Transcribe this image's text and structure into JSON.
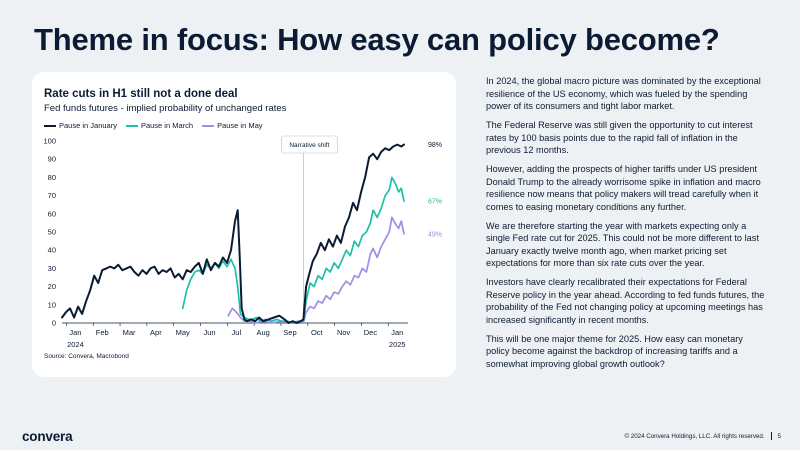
{
  "page": {
    "title": "Theme in focus: How easy can policy become?",
    "paragraphs": [
      "In 2024, the global macro picture was dominated by the exceptional resilience of the US economy, which was fueled by the spending power of its consumers and tight labor market.",
      "The Federal Reserve was still given the opportunity to cut interest rates by 100 basis points due to the rapid fall of inflation in the previous 12 months.",
      "However, adding the prospects of higher tariffs under US president Donald Trump to the already worrisome spike in inflation and macro resilience now means that policy makers will tread carefully when it comes to easing monetary conditions any further.",
      "We are therefore starting the year with markets expecting only a single Fed rate cut for 2025. This could not be more different to last January exactly twelve month ago, when market pricing set expectations for more than six rate cuts over the year.",
      "Investors have clearly recalibrated their expectations for Federal Reserve policy in the year ahead. According to fed funds futures, the probability of the Fed not changing policy at upcoming meetings has increased significantly in recent months.",
      "This will be one major theme for 2025. How easy can monetary policy become against the backdrop of increasing tariffs and a somewhat improving global growth outlook?"
    ],
    "footer": {
      "logo_main": "convera",
      "copyright": "© 2024 Convera Holdings, LLC. All rights reserved.",
      "page_number": "5"
    }
  },
  "chart_data": {
    "type": "line",
    "title": "Rate cuts in H1 still not a done deal",
    "subtitle": "Fed funds futures - implied probability of unchanged rates",
    "source": "Source: Convera, Macrobond",
    "ylim": [
      0,
      100
    ],
    "yticks": [
      0,
      10,
      20,
      30,
      40,
      50,
      60,
      70,
      80,
      90,
      100
    ],
    "xlim": [
      0,
      12.9
    ],
    "xticks": [
      {
        "t": 0.5,
        "label": "Jan",
        "year": "2024"
      },
      {
        "t": 1.5,
        "label": "Feb"
      },
      {
        "t": 2.5,
        "label": "Mar"
      },
      {
        "t": 3.5,
        "label": "Apr"
      },
      {
        "t": 4.5,
        "label": "May"
      },
      {
        "t": 5.5,
        "label": "Jun"
      },
      {
        "t": 6.5,
        "label": "Jul"
      },
      {
        "t": 7.5,
        "label": "Aug"
      },
      {
        "t": 8.5,
        "label": "Sep"
      },
      {
        "t": 9.5,
        "label": "Oct"
      },
      {
        "t": 10.5,
        "label": "Nov"
      },
      {
        "t": 11.5,
        "label": "Dec"
      },
      {
        "t": 12.5,
        "label": "Jan",
        "year": "2025"
      }
    ],
    "annotation": {
      "label": "Narrative shift",
      "t": 9.0
    },
    "grid": false,
    "legend_position": "top-left",
    "series": [
      {
        "name": "Pause in January",
        "color": "#0b1b33",
        "end_label": "98%",
        "points": [
          [
            0,
            3
          ],
          [
            0.15,
            6
          ],
          [
            0.3,
            8
          ],
          [
            0.45,
            3
          ],
          [
            0.6,
            9
          ],
          [
            0.75,
            5
          ],
          [
            0.9,
            12
          ],
          [
            1.05,
            18
          ],
          [
            1.2,
            26
          ],
          [
            1.35,
            22
          ],
          [
            1.5,
            29
          ],
          [
            1.65,
            30
          ],
          [
            1.8,
            31
          ],
          [
            1.95,
            30
          ],
          [
            2.1,
            32
          ],
          [
            2.25,
            29
          ],
          [
            2.4,
            30
          ],
          [
            2.55,
            31
          ],
          [
            2.7,
            28
          ],
          [
            2.85,
            26
          ],
          [
            3.0,
            29
          ],
          [
            3.15,
            27
          ],
          [
            3.3,
            30
          ],
          [
            3.45,
            31
          ],
          [
            3.6,
            27
          ],
          [
            3.75,
            29
          ],
          [
            3.9,
            28
          ],
          [
            4.05,
            30
          ],
          [
            4.2,
            25
          ],
          [
            4.35,
            27
          ],
          [
            4.5,
            24
          ],
          [
            4.65,
            29
          ],
          [
            4.8,
            28
          ],
          [
            4.95,
            31
          ],
          [
            5.1,
            33
          ],
          [
            5.25,
            27
          ],
          [
            5.4,
            35
          ],
          [
            5.55,
            29
          ],
          [
            5.7,
            33
          ],
          [
            5.85,
            31
          ],
          [
            6.0,
            36
          ],
          [
            6.15,
            33
          ],
          [
            6.3,
            40
          ],
          [
            6.45,
            56
          ],
          [
            6.55,
            62
          ],
          [
            6.62,
            38
          ],
          [
            6.7,
            8
          ],
          [
            6.8,
            2
          ],
          [
            6.9,
            1
          ],
          [
            7.05,
            2
          ],
          [
            7.2,
            1
          ],
          [
            7.35,
            3
          ],
          [
            7.5,
            1
          ],
          [
            7.7,
            2
          ],
          [
            7.9,
            3
          ],
          [
            8.1,
            4
          ],
          [
            8.3,
            2
          ],
          [
            8.45,
            0
          ],
          [
            8.6,
            1
          ],
          [
            8.75,
            0
          ],
          [
            8.9,
            1
          ],
          [
            9.0,
            2
          ],
          [
            9.1,
            20
          ],
          [
            9.2,
            26
          ],
          [
            9.35,
            34
          ],
          [
            9.5,
            38
          ],
          [
            9.65,
            44
          ],
          [
            9.8,
            40
          ],
          [
            9.95,
            46
          ],
          [
            10.1,
            42
          ],
          [
            10.25,
            48
          ],
          [
            10.4,
            44
          ],
          [
            10.55,
            53
          ],
          [
            10.7,
            58
          ],
          [
            10.85,
            66
          ],
          [
            11.0,
            62
          ],
          [
            11.15,
            72
          ],
          [
            11.3,
            80
          ],
          [
            11.45,
            91
          ],
          [
            11.6,
            93
          ],
          [
            11.75,
            90
          ],
          [
            11.9,
            94
          ],
          [
            12.05,
            96
          ],
          [
            12.2,
            95
          ],
          [
            12.35,
            97
          ],
          [
            12.5,
            98
          ],
          [
            12.65,
            97
          ],
          [
            12.75,
            98
          ]
        ]
      },
      {
        "name": "Pause in March",
        "color": "#1fbfa9",
        "end_label": "67%",
        "points": [
          [
            4.5,
            8
          ],
          [
            4.65,
            18
          ],
          [
            4.8,
            24
          ],
          [
            4.95,
            28
          ],
          [
            5.1,
            29
          ],
          [
            5.25,
            27
          ],
          [
            5.4,
            32
          ],
          [
            5.55,
            30
          ],
          [
            5.7,
            33
          ],
          [
            5.85,
            30
          ],
          [
            6.0,
            34
          ],
          [
            6.15,
            31
          ],
          [
            6.3,
            35
          ],
          [
            6.45,
            30
          ],
          [
            6.55,
            20
          ],
          [
            6.65,
            5
          ],
          [
            6.8,
            3
          ],
          [
            6.95,
            2
          ],
          [
            7.1,
            2
          ],
          [
            7.25,
            3
          ],
          [
            7.4,
            1
          ],
          [
            7.6,
            2
          ],
          [
            7.8,
            1
          ],
          [
            8.0,
            2
          ],
          [
            8.2,
            1
          ],
          [
            8.4,
            1
          ],
          [
            8.6,
            0
          ],
          [
            8.8,
            1
          ],
          [
            9.0,
            1
          ],
          [
            9.1,
            12
          ],
          [
            9.25,
            22
          ],
          [
            9.4,
            20
          ],
          [
            9.55,
            26
          ],
          [
            9.7,
            24
          ],
          [
            9.85,
            30
          ],
          [
            10.0,
            28
          ],
          [
            10.15,
            33
          ],
          [
            10.3,
            30
          ],
          [
            10.45,
            35
          ],
          [
            10.6,
            40
          ],
          [
            10.75,
            37
          ],
          [
            10.9,
            45
          ],
          [
            11.05,
            42
          ],
          [
            11.2,
            48
          ],
          [
            11.35,
            50
          ],
          [
            11.5,
            55
          ],
          [
            11.6,
            62
          ],
          [
            11.75,
            58
          ],
          [
            11.9,
            63
          ],
          [
            12.05,
            70
          ],
          [
            12.2,
            73
          ],
          [
            12.3,
            80
          ],
          [
            12.45,
            76
          ],
          [
            12.55,
            72
          ],
          [
            12.65,
            74
          ],
          [
            12.75,
            67
          ]
        ]
      },
      {
        "name": "Pause in May",
        "color": "#9b8fe6",
        "end_label": "49%",
        "points": [
          [
            6.2,
            4
          ],
          [
            6.35,
            8
          ],
          [
            6.5,
            6
          ],
          [
            6.65,
            3
          ],
          [
            6.8,
            1
          ],
          [
            7.0,
            1
          ],
          [
            7.2,
            0
          ],
          [
            7.5,
            1
          ],
          [
            7.8,
            0
          ],
          [
            8.2,
            1
          ],
          [
            8.6,
            0
          ],
          [
            9.0,
            0
          ],
          [
            9.1,
            6
          ],
          [
            9.25,
            9
          ],
          [
            9.4,
            8
          ],
          [
            9.55,
            12
          ],
          [
            9.7,
            11
          ],
          [
            9.85,
            15
          ],
          [
            10.0,
            13
          ],
          [
            10.15,
            17
          ],
          [
            10.3,
            16
          ],
          [
            10.45,
            20
          ],
          [
            10.6,
            23
          ],
          [
            10.75,
            21
          ],
          [
            10.9,
            26
          ],
          [
            11.05,
            25
          ],
          [
            11.2,
            30
          ],
          [
            11.35,
            28
          ],
          [
            11.5,
            38
          ],
          [
            11.6,
            41
          ],
          [
            11.75,
            36
          ],
          [
            11.9,
            42
          ],
          [
            12.05,
            46
          ],
          [
            12.2,
            50
          ],
          [
            12.3,
            58
          ],
          [
            12.45,
            54
          ],
          [
            12.55,
            52
          ],
          [
            12.65,
            56
          ],
          [
            12.75,
            49
          ]
        ]
      }
    ]
  }
}
